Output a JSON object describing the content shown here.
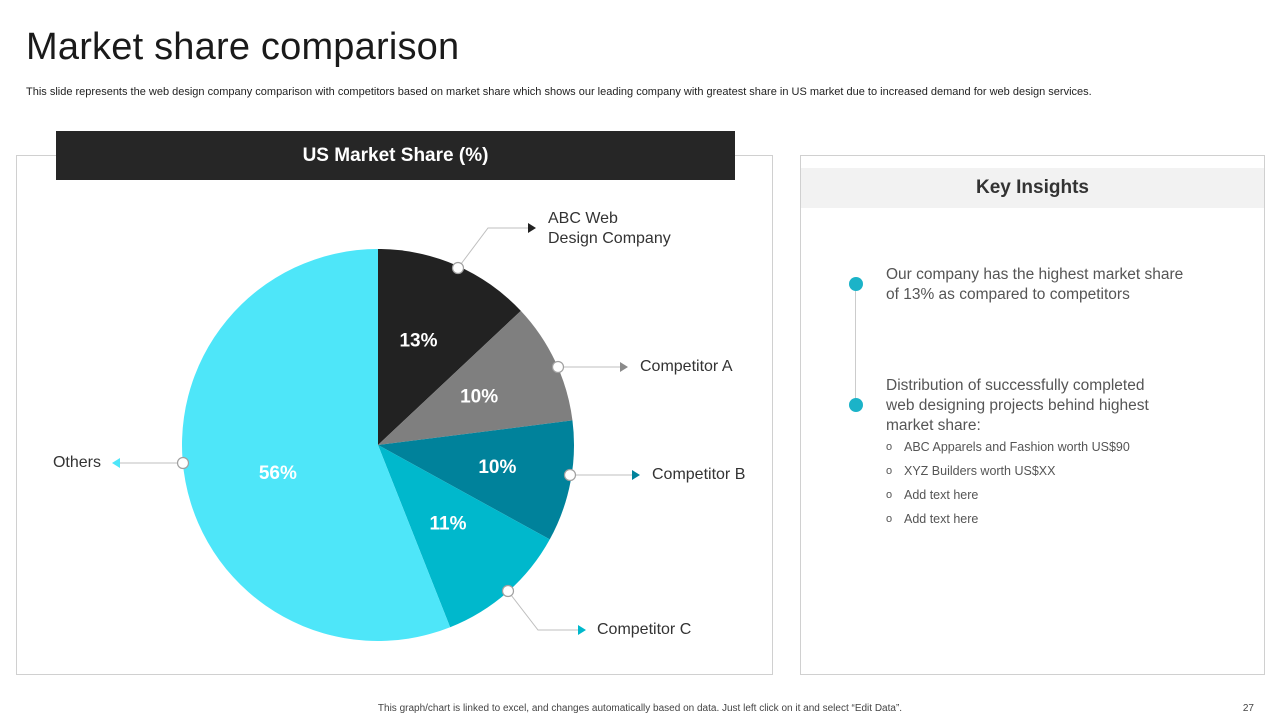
{
  "title": "Market share comparison",
  "subtitle": "This slide represents the web design company comparison with competitors based on market share which shows our leading company with greatest share in US market due to increased demand for web design services.",
  "chart_data": {
    "type": "pie",
    "title": "US Market Share (%)",
    "categories": [
      "ABC Web Design Company",
      "Competitor A",
      "Competitor B",
      "Competitor C",
      "Others"
    ],
    "values": [
      13,
      10,
      10,
      11,
      56
    ],
    "value_labels": [
      "13%",
      "10%",
      "10%",
      "11%",
      "56%"
    ],
    "colors": [
      "#222222",
      "#7f7f7f",
      "#00829b",
      "#00b8cc",
      "#4ee6f9"
    ],
    "label_colors": [
      "#ffffff",
      "#ffffff",
      "#ffffff",
      "#ffffff",
      "#ffffff"
    ],
    "callout_labels": [
      [
        "ABC Web",
        "Design Company"
      ],
      [
        "Competitor A"
      ],
      [
        "Competitor B"
      ],
      [
        "Competitor C"
      ],
      [
        "Others"
      ]
    ]
  },
  "insights": {
    "heading": "Key Insights",
    "point1": [
      "Our company has the highest market share",
      "of 13% as compared to competitors"
    ],
    "point2": [
      "Distribution of successfully  completed",
      "web designing projects behind highest",
      "market share:"
    ],
    "bullets": [
      "ABC Apparels and Fashion worth  US$90",
      "XYZ Builders worth US$XX",
      "Add text here",
      "Add text here"
    ],
    "bullet_marker": "o",
    "accent": "#1bb3c8"
  },
  "footer": "This graph/chart is linked to excel, and changes automatically based on data. Just left click on it and select “Edit Data”.",
  "page_number": "27"
}
